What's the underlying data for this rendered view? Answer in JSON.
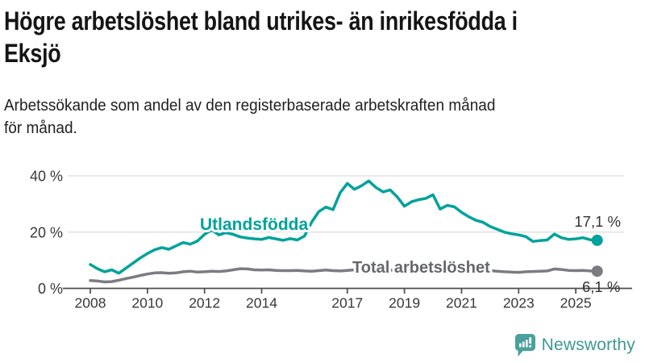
{
  "header": {
    "title_lines": [
      "Högre arbetslöshet bland utrikes- än inrikesfödda i",
      "Eksjö"
    ],
    "subtitle_lines": [
      "Arbetssökande som andel av den registerbaserade arbetskraften månad",
      "för månad."
    ]
  },
  "chart_data": {
    "type": "line",
    "title": "Högre arbetslöshet bland utrikes- än inrikesfödda i Eksjö",
    "subtitle": "Arbetssökande som andel av den registerbaserade arbetskraften månad för månad.",
    "xlabel": "",
    "ylabel": "",
    "ylim": [
      0,
      40
    ],
    "grid": "horizontal",
    "legend_position": "inline-labels",
    "x_start": 2008,
    "x_step": 0.25,
    "x_tick_years": [
      2008,
      2010,
      2012,
      2014,
      2017,
      2019,
      2021,
      2023,
      2025
    ],
    "y_ticks": [
      {
        "value": 0,
        "label": "0 %"
      },
      {
        "value": 20,
        "label": "20 %"
      },
      {
        "value": 40,
        "label": "40 %"
      }
    ],
    "series": [
      {
        "name": "Utlandsfödda",
        "color": "#00a29b",
        "end_label": "17,1 %",
        "end_value": 17.1,
        "values": [
          8.5,
          7.0,
          5.9,
          6.6,
          5.4,
          7.2,
          9.0,
          10.8,
          12.4,
          13.7,
          14.5,
          13.9,
          15.1,
          16.3,
          15.7,
          16.8,
          19.2,
          20.8,
          19.0,
          19.8,
          19.2,
          18.3,
          17.9,
          17.6,
          17.4,
          18.1,
          17.6,
          17.1,
          17.7,
          17.2,
          18.6,
          23.5,
          27.3,
          28.9,
          28.0,
          34.0,
          37.3,
          35.2,
          36.5,
          38.2,
          35.9,
          34.3,
          35.0,
          32.5,
          29.2,
          30.8,
          31.5,
          32.0,
          33.3,
          28.2,
          29.5,
          29.0,
          27.0,
          25.5,
          24.2,
          23.5,
          22.0,
          21.0,
          20.0,
          19.4,
          19.0,
          18.4,
          16.7,
          17.0,
          17.2,
          19.3,
          18.0,
          17.4,
          17.6,
          18.0,
          17.3,
          17.1
        ]
      },
      {
        "name": "Total arbetslöshet",
        "color": "#7b7c82",
        "end_label": "6,1 %",
        "end_value": 6.1,
        "values": [
          2.8,
          2.6,
          2.3,
          2.4,
          2.9,
          3.5,
          4.0,
          4.6,
          5.1,
          5.5,
          5.6,
          5.4,
          5.5,
          5.9,
          6.1,
          5.8,
          5.9,
          6.1,
          6.0,
          6.2,
          6.6,
          7.0,
          6.9,
          6.6,
          6.5,
          6.6,
          6.4,
          6.3,
          6.3,
          6.4,
          6.2,
          6.1,
          6.3,
          6.5,
          6.3,
          6.2,
          6.4,
          6.6,
          6.5,
          6.3,
          6.4,
          6.7,
          6.5,
          6.3,
          6.5,
          6.6,
          6.4,
          6.5,
          7.0,
          7.8,
          7.9,
          7.6,
          7.4,
          7.2,
          6.9,
          6.6,
          6.3,
          6.1,
          5.9,
          5.8,
          5.7,
          5.9,
          6.0,
          6.1,
          6.2,
          6.9,
          6.7,
          6.4,
          6.3,
          6.4,
          6.2,
          6.1
        ]
      }
    ],
    "colors": {
      "grid": "#dcdcdc",
      "axis": "#4d4d4d",
      "tick_text": "#383838",
      "end_label_text": "#333333",
      "series_label_1": "#00a29b",
      "series_label_2": "#66676d"
    }
  },
  "branding": {
    "logo_text": "Newsworthy",
    "logo_color": "#3d9894",
    "icon": "newsworthy-chart-bubble-icon",
    "icon_color": "#4aa09c"
  }
}
